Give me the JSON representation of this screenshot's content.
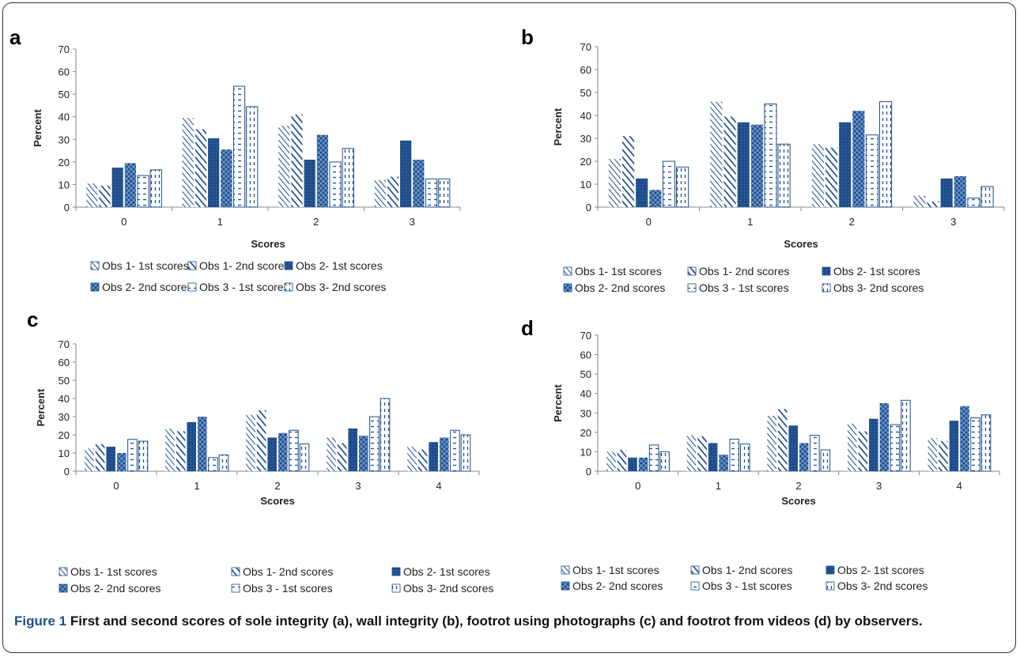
{
  "colors": {
    "bar": "#1f4e8c",
    "axis": "#888888",
    "text": "#222222"
  },
  "series_names": [
    "Obs 1- 1st scores",
    "Obs 1- 2nd scores",
    "Obs 2- 1st scores",
    "Obs 2- 2nd scores",
    "Obs 3 - 1st scores",
    "Obs 3- 2nd scores"
  ],
  "chart_data": [
    {
      "panel": "a",
      "type": "bar",
      "xlabel": "Scores",
      "ylabel": "Percent",
      "ylim": [
        0,
        70
      ],
      "yticks": [
        0,
        10,
        20,
        30,
        40,
        50,
        60,
        70
      ],
      "categories": [
        "0",
        "1",
        "2",
        "3"
      ],
      "legend_position": "bottom",
      "series": [
        {
          "name": "Obs 1- 1st scores",
          "values": [
            10.5,
            39.5,
            36,
            12
          ]
        },
        {
          "name": "Obs 1- 2nd scores",
          "values": [
            9.5,
            34.5,
            41,
            13.5
          ]
        },
        {
          "name": "Obs 2- 1st scores",
          "values": [
            17.5,
            30.5,
            21,
            29.5
          ]
        },
        {
          "name": "Obs 2- 2nd scores",
          "values": [
            19.5,
            25.5,
            32,
            21
          ]
        },
        {
          "name": "Obs 3 - 1st scores",
          "values": [
            14,
            53.5,
            20,
            12.5
          ]
        },
        {
          "name": "Obs 3- 2nd scores",
          "values": [
            16.5,
            44.5,
            26,
            12.5
          ]
        }
      ]
    },
    {
      "panel": "b",
      "type": "bar",
      "xlabel": "Scores",
      "ylabel": "Percent",
      "ylim": [
        0,
        70
      ],
      "yticks": [
        0,
        10,
        20,
        30,
        40,
        50,
        60,
        70
      ],
      "categories": [
        "0",
        "1",
        "2",
        "3"
      ],
      "legend_position": "bottom",
      "series": [
        {
          "name": "Obs 1- 1st scores",
          "values": [
            21,
            46,
            27.5,
            5
          ]
        },
        {
          "name": "Obs 1- 2nd scores",
          "values": [
            31,
            39.5,
            26,
            2.5
          ]
        },
        {
          "name": "Obs 2- 1st scores",
          "values": [
            12.5,
            37,
            37,
            12.5
          ]
        },
        {
          "name": "Obs 2- 2nd scores",
          "values": [
            7.5,
            36,
            42,
            13.5
          ]
        },
        {
          "name": "Obs 3 - 1st scores",
          "values": [
            20,
            45,
            31.5,
            4
          ]
        },
        {
          "name": "Obs 3- 2nd scores",
          "values": [
            17.5,
            27.5,
            46,
            9
          ]
        }
      ]
    },
    {
      "panel": "c",
      "type": "bar",
      "xlabel": "Scores",
      "ylabel": "Percent",
      "ylim": [
        0,
        70
      ],
      "yticks": [
        0,
        10,
        20,
        30,
        40,
        50,
        60,
        70
      ],
      "categories": [
        "0",
        "1",
        "2",
        "3",
        "4"
      ],
      "legend_position": "bottom",
      "series": [
        {
          "name": "Obs 1- 1st scores",
          "values": [
            12.5,
            23.5,
            31,
            18.5,
            13.5
          ]
        },
        {
          "name": "Obs 1- 2nd scores",
          "values": [
            15,
            22,
            33.5,
            15.5,
            12
          ]
        },
        {
          "name": "Obs 2- 1st scores",
          "values": [
            13.5,
            27,
            18.5,
            23.5,
            16
          ]
        },
        {
          "name": "Obs 2- 2nd scores",
          "values": [
            10,
            30,
            21,
            19.5,
            18.5
          ]
        },
        {
          "name": "Obs 3 - 1st scores",
          "values": [
            17.5,
            7.5,
            22.5,
            30,
            22.5
          ]
        },
        {
          "name": "Obs 3- 2nd scores",
          "values": [
            16.5,
            9,
            15,
            40,
            20
          ]
        }
      ]
    },
    {
      "panel": "d",
      "type": "bar",
      "xlabel": "Scores",
      "ylabel": "Percent",
      "ylim": [
        0,
        70
      ],
      "yticks": [
        0,
        10,
        20,
        30,
        40,
        50,
        60,
        70
      ],
      "categories": [
        "0",
        "1",
        "2",
        "3",
        "4"
      ],
      "legend_position": "bottom",
      "series": [
        {
          "name": "Obs 1- 1st scores",
          "values": [
            10,
            18.5,
            28.5,
            24.5,
            17
          ]
        },
        {
          "name": "Obs 1- 2nd scores",
          "values": [
            11,
            18,
            32,
            20.5,
            15.5
          ]
        },
        {
          "name": "Obs 2- 1st scores",
          "values": [
            7,
            14.5,
            23.5,
            27,
            26
          ]
        },
        {
          "name": "Obs 2- 2nd scores",
          "values": [
            7,
            8.5,
            14.5,
            35,
            33.5
          ]
        },
        {
          "name": "Obs 3 - 1st scores",
          "values": [
            13.5,
            16.5,
            18.5,
            24,
            27.5
          ]
        },
        {
          "name": "Obs 3- 2nd scores",
          "values": [
            10,
            14,
            11,
            36.5,
            29
          ]
        }
      ]
    }
  ],
  "caption": {
    "label": "Figure 1",
    "text": "First and second scores of sole integrity (a), wall integrity (b), footrot using photographs (c) and footrot from videos (d) by observers."
  }
}
